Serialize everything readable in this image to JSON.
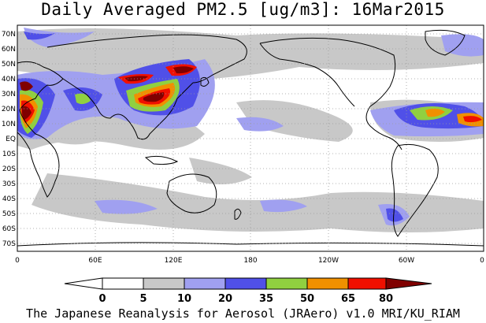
{
  "title": "Daily Averaged PM2.5 [ug/m3]: 16Mar2015",
  "credit": "The Japanese Reanalysis for Aerosol (JRAero) v1.0 MRI/KU_RIAM",
  "map": {
    "lat_labels": [
      "70N",
      "60N",
      "50N",
      "40N",
      "30N",
      "20N",
      "10N",
      "EQ",
      "10S",
      "20S",
      "30S",
      "40S",
      "50S",
      "60S",
      "70S"
    ],
    "lon_labels": [
      "0",
      "60E",
      "120E",
      "180",
      "120W",
      "60W",
      "0"
    ]
  },
  "colorbar": {
    "levels": [
      "0",
      "5",
      "10",
      "20",
      "35",
      "50",
      "65",
      "80"
    ],
    "colors": [
      "#ffffff",
      "#c8c8c8",
      "#a0a0f0",
      "#5050e8",
      "#90d040",
      "#f09000",
      "#f01000",
      "#800000"
    ]
  }
}
